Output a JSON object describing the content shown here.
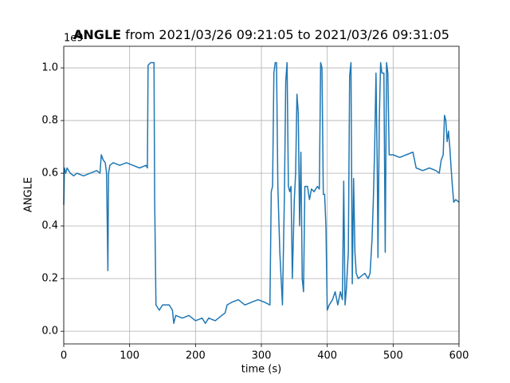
{
  "chart_data": {
    "type": "line",
    "title": "ANGLE",
    "title_suffix": "from 2021/03/26 09:21:05 to 2021/03/26 09:31:05",
    "x_label": "time (s)",
    "y_label": "ANGLE",
    "y_offset_label": "1e9",
    "color": "#1f77b4",
    "grid": true,
    "xlim": [
      0,
      600
    ],
    "ylim": [
      -0.048,
      1.082
    ],
    "xticks": [
      0,
      100,
      200,
      300,
      400,
      500,
      600
    ],
    "yticks": [
      {
        "value": 0,
        "label": "0.0"
      },
      0.2,
      0.4,
      0.6,
      0.8,
      {
        "value": 1,
        "label": "1.0"
      }
    ],
    "x": [
      0,
      1,
      3,
      5,
      10,
      15,
      20,
      30,
      40,
      50,
      55,
      57,
      60,
      63,
      65,
      67,
      68,
      70,
      75,
      85,
      95,
      105,
      115,
      125,
      127,
      128,
      132,
      137,
      138,
      140,
      145,
      150,
      160,
      165,
      167,
      170,
      180,
      190,
      200,
      210,
      215,
      220,
      230,
      240,
      245,
      248,
      255,
      265,
      275,
      285,
      295,
      305,
      313,
      315,
      317,
      319,
      321,
      323,
      325,
      328,
      332,
      335,
      337,
      339,
      341,
      343,
      345,
      347,
      350,
      352,
      354,
      356,
      358,
      360,
      362,
      364,
      366,
      370,
      373,
      376,
      380,
      385,
      388,
      390,
      392,
      394,
      396,
      398,
      400,
      403,
      408,
      412,
      416,
      420,
      423,
      425,
      427,
      429,
      432,
      434,
      436,
      438,
      440,
      442,
      444,
      447,
      452,
      457,
      462,
      465,
      468,
      470,
      472,
      474,
      476,
      477,
      479,
      481,
      483,
      486,
      488,
      490,
      492,
      494,
      500,
      510,
      520,
      530,
      535,
      545,
      555,
      565,
      570,
      573,
      576,
      578,
      580,
      582,
      584,
      586,
      588,
      590,
      592,
      595,
      600
    ],
    "values": [
      0.48,
      0.62,
      0.6,
      0.62,
      0.6,
      0.59,
      0.6,
      0.59,
      0.6,
      0.61,
      0.6,
      0.67,
      0.65,
      0.64,
      0.6,
      0.23,
      0.6,
      0.63,
      0.64,
      0.63,
      0.64,
      0.63,
      0.62,
      0.63,
      0.62,
      1.01,
      1.02,
      1.02,
      0.5,
      0.1,
      0.08,
      0.1,
      0.1,
      0.08,
      0.03,
      0.06,
      0.05,
      0.06,
      0.04,
      0.05,
      0.03,
      0.05,
      0.04,
      0.06,
      0.07,
      0.1,
      0.11,
      0.12,
      0.1,
      0.11,
      0.12,
      0.11,
      0.1,
      0.53,
      0.55,
      0.98,
      1.02,
      1.02,
      0.55,
      0.3,
      0.1,
      0.52,
      0.95,
      1.02,
      0.55,
      0.53,
      0.55,
      0.2,
      0.5,
      0.6,
      0.9,
      0.83,
      0.4,
      0.68,
      0.2,
      0.15,
      0.55,
      0.55,
      0.5,
      0.54,
      0.53,
      0.55,
      0.54,
      1.02,
      1.0,
      0.52,
      0.52,
      0.4,
      0.08,
      0.1,
      0.12,
      0.15,
      0.1,
      0.15,
      0.12,
      0.57,
      0.1,
      0.16,
      0.3,
      0.97,
      1.02,
      0.18,
      0.58,
      0.3,
      0.22,
      0.2,
      0.21,
      0.22,
      0.2,
      0.22,
      0.35,
      0.5,
      0.7,
      0.98,
      0.6,
      0.28,
      0.8,
      1.02,
      0.98,
      0.98,
      0.3,
      1.02,
      0.98,
      0.67,
      0.67,
      0.66,
      0.67,
      0.68,
      0.62,
      0.61,
      0.62,
      0.61,
      0.6,
      0.65,
      0.67,
      0.82,
      0.8,
      0.72,
      0.76,
      0.7,
      0.62,
      0.55,
      0.49,
      0.5,
      0.49
    ]
  }
}
